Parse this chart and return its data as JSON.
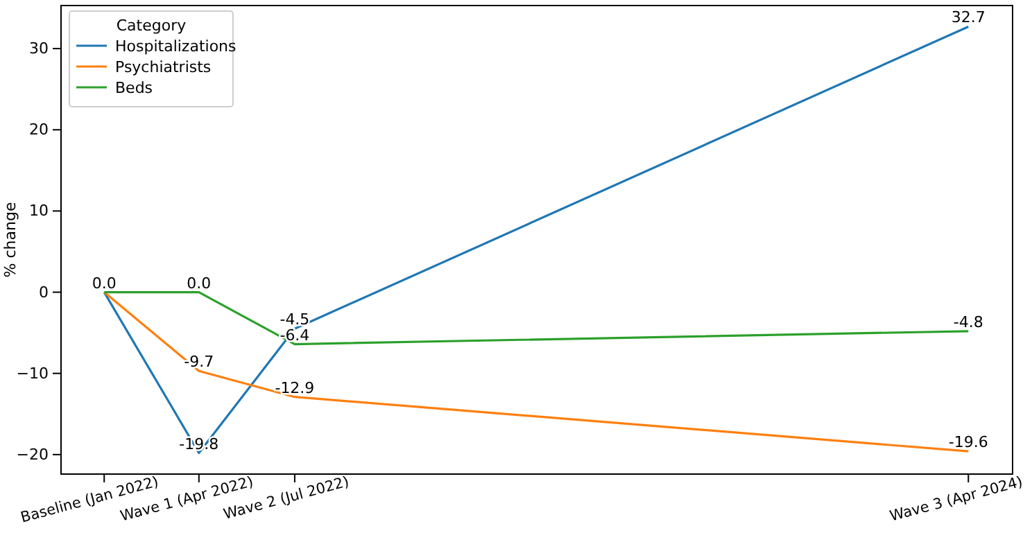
{
  "chart_data": {
    "type": "line",
    "ylabel": "% change",
    "legend_title": "Category",
    "legend": "top left",
    "grid": false,
    "x": [
      "2022-01",
      "2022-04",
      "2022-07",
      "2024-04"
    ],
    "xlim": [
      "2021-11-21",
      "2024-05-13"
    ],
    "xticks": [
      {
        "value": "2022-01",
        "label": "Baseline (Jan 2022)"
      },
      {
        "value": "2022-04",
        "label": "Wave 1 (Apr 2022)"
      },
      {
        "value": "2022-07",
        "label": "Wave 2 (Jul 2022)"
      },
      {
        "value": "2024-04",
        "label": "Wave 3 (Apr 2024)"
      }
    ],
    "ylim": [
      -22.4,
      35.3
    ],
    "yticks": [
      -20,
      -10,
      0,
      10,
      20,
      30
    ],
    "series": [
      {
        "name": "Hospitalizations",
        "color": "#1f77b4",
        "values": [
          0.0,
          -19.8,
          -4.5,
          32.7
        ],
        "value_labels": [
          "0.0",
          "-19.8",
          "-4.5",
          "32.7"
        ]
      },
      {
        "name": "Psychiatrists",
        "color": "#ff7f0e",
        "values": [
          0.0,
          -9.7,
          -12.9,
          -19.6
        ],
        "value_labels": [
          null,
          "-9.7",
          "-12.9",
          "-19.6"
        ]
      },
      {
        "name": "Beds",
        "color": "#2ca02c",
        "values": [
          0.0,
          0.0,
          -6.4,
          -4.8
        ],
        "value_labels": [
          null,
          "0.0",
          "-6.4",
          "-4.8"
        ]
      }
    ]
  }
}
